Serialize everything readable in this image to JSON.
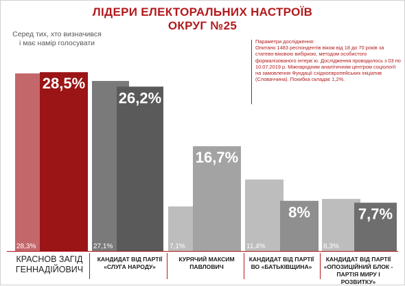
{
  "title_line1": "ЛІДЕРИ ЕЛЕКТОРАЛЬНИХ НАСТРОЇВ",
  "title_line2": "ОКРУГ №25",
  "subtitle_lines": [
    "Серед тих, хто визначився",
    "і має намір голосувати"
  ],
  "params": {
    "heading": "Параметри дослідження:",
    "body": "Опитано 1483 респондентів віком від 18 до 70 років за статево-віковою вибіркою, методом особистого формалізованого інтерв`ю. Дослідження проводилось з 03 по 10.07.2019 р. Міжнародним аналітичним центром соціології на замовлення Фундації східноєвропейських ініціатив (Словаччина). Похибка складає 1,2%."
  },
  "chart_data": {
    "type": "bar",
    "categories": [
      [
        "КРАСНОВ ЗАГІД",
        "ГЕННАДІЙОВИЧ"
      ],
      [
        "КАНДИДАТ ВІД ПАРТІЇ",
        "«СЛУГА НАРОДУ»"
      ],
      [
        "КУРЯЧИЙ МАКСИМ",
        "ПАВЛОВИЧ"
      ],
      [
        "КАНДИДАТ ВІД ПАРТІЇ",
        "ВО «БАТЬКІВЩИНА»"
      ],
      [
        "КАНДИДАТ ВІД ПАРТІЇ",
        "«ОПОЗИЦІЙНИЙ БЛОК -",
        "ПАРТІЯ МИРУ І",
        "РОЗВИТКУ»"
      ]
    ],
    "series": [
      {
        "values": [
          28.3,
          27.1,
          7.1,
          11.4,
          8.3
        ],
        "labels": [
          "28,3%",
          "27,1%",
          "7,1%",
          "11,4%",
          "8,3%"
        ],
        "colors": [
          "#c4676b",
          "#7a7a7a",
          "#bdbdbd",
          "#bdbdbd",
          "#bdbdbd"
        ]
      },
      {
        "values": [
          28.5,
          26.2,
          16.7,
          8,
          7.7
        ],
        "labels": [
          "28,5%",
          "26,2%",
          "16,7%",
          "8%",
          "7,7%"
        ],
        "colors": [
          "#9b1416",
          "#5a5a5a",
          "#a3a3a3",
          "#8f8f8f",
          "#6e6e6e"
        ]
      }
    ],
    "ylim": [
      0,
      30
    ],
    "grid": false,
    "legend": "none"
  }
}
